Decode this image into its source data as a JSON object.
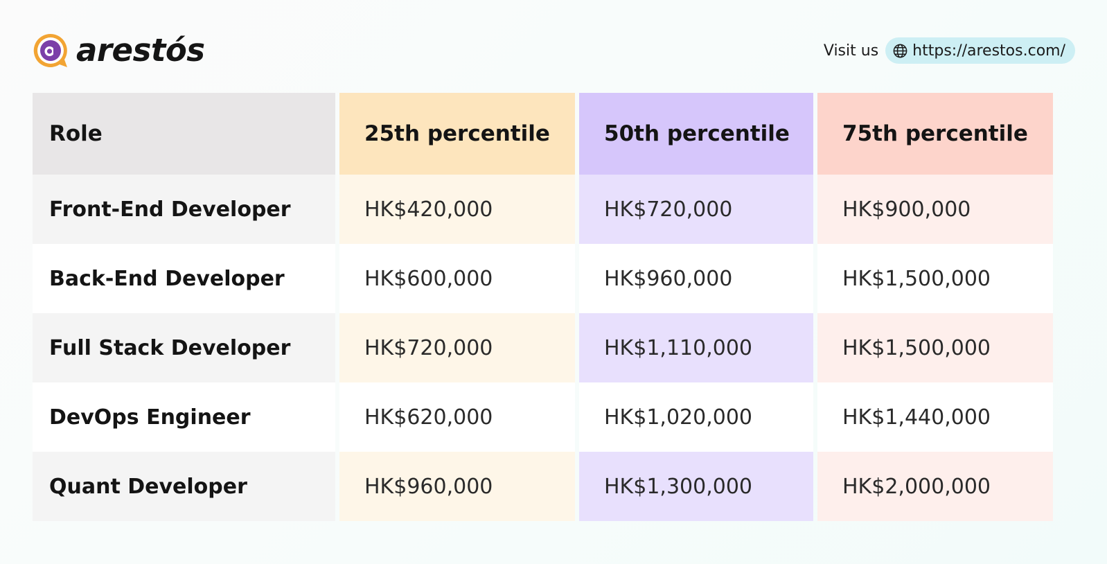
{
  "brand": {
    "name": "arestós",
    "colors": {
      "accent_purple": "#7b3fa8",
      "accent_orange": "#f2a433"
    }
  },
  "visit": {
    "label": "Visit us",
    "url": "https://arestos.com/",
    "icon": "globe-icon"
  },
  "table": {
    "columns": [
      "Role",
      "25th percentile",
      "50th percentile",
      "75th percentile"
    ],
    "column_colors": [
      "#e8e6e7",
      "#fde5bd",
      "#d6c6fb",
      "#fdd4cb"
    ],
    "rows": [
      {
        "role": "Front-End Developer",
        "p25": "HK$420,000",
        "p50": "HK$720,000",
        "p75": "HK$900,000"
      },
      {
        "role": "Back-End Developer",
        "p25": "HK$600,000",
        "p50": "HK$960,000",
        "p75": "HK$1,500,000"
      },
      {
        "role": "Full Stack Developer",
        "p25": "HK$720,000",
        "p50": "HK$1,110,000",
        "p75": "HK$1,500,000"
      },
      {
        "role": "DevOps Engineer",
        "p25": "HK$620,000",
        "p50": "HK$1,020,000",
        "p75": "HK$1,440,000"
      },
      {
        "role": "Quant Developer",
        "p25": "HK$960,000",
        "p50": "HK$1,300,000",
        "p75": "HK$2,000,000"
      }
    ]
  }
}
